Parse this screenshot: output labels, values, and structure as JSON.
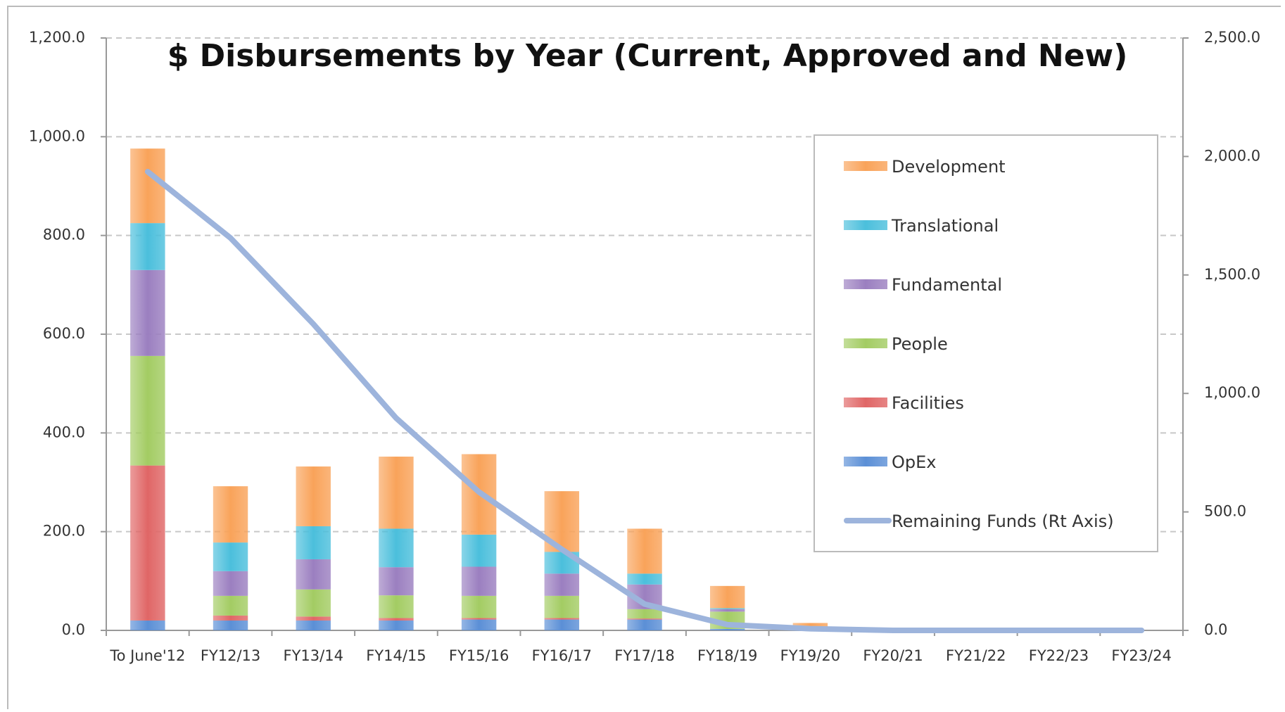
{
  "chart_data": {
    "type": "stacked-bar-line",
    "title": "$ Disbursements by Year (Current, Approved and New)",
    "categories": [
      "To June'12",
      "FY12/13",
      "FY13/14",
      "FY14/15",
      "FY15/16",
      "FY16/17",
      "FY17/18",
      "FY18/19",
      "FY19/20",
      "FY20/21",
      "FY21/22",
      "FY22/23",
      "FY23/24"
    ],
    "series": [
      {
        "name": "OpEx",
        "color": "#5b8fd6",
        "values": [
          20,
          20,
          20,
          20,
          22,
          22,
          22,
          3,
          0,
          0,
          0,
          0,
          0
        ]
      },
      {
        "name": "Facilities",
        "color": "#e06666",
        "values": [
          314,
          10,
          8,
          5,
          3,
          3,
          2,
          0,
          0,
          0,
          0,
          0,
          0
        ]
      },
      {
        "name": "People",
        "color": "#a3cc63",
        "values": [
          222,
          40,
          55,
          46,
          45,
          45,
          19,
          35,
          0,
          0,
          0,
          0,
          0
        ]
      },
      {
        "name": "Fundamental",
        "color": "#9b7fc0",
        "values": [
          174,
          50,
          61,
          57,
          59,
          45,
          50,
          5,
          0,
          0,
          0,
          0,
          0
        ]
      },
      {
        "name": "Translational",
        "color": "#4bbfdc",
        "values": [
          95,
          58,
          67,
          78,
          65,
          44,
          22,
          2,
          0,
          0,
          0,
          0,
          0
        ]
      },
      {
        "name": "Development",
        "color": "#f9a35a",
        "values": [
          151,
          114,
          121,
          146,
          163,
          123,
          91,
          45,
          15,
          0,
          0,
          0,
          0
        ]
      },
      {
        "name": "Remaining Funds (Rt Axis)",
        "color": "#9db4dc",
        "axis": "y2",
        "line": true,
        "values": [
          1936,
          1656,
          1293,
          896,
          584,
          342,
          111,
          24,
          7,
          0,
          0,
          0,
          0
        ]
      }
    ],
    "ylim": [
      0,
      1200
    ],
    "yticks": [
      {
        "value": 0,
        "label": "0.0"
      },
      {
        "value": 200,
        "label": "200.0"
      },
      {
        "value": 400,
        "label": "400.0"
      },
      {
        "value": 600,
        "label": "600.0"
      },
      {
        "value": 800,
        "label": "800.0"
      },
      {
        "value": 1000,
        "label": "1,000.0"
      },
      {
        "value": 1200,
        "label": "1,200.0"
      }
    ],
    "y2lim": [
      0,
      2500
    ],
    "y2ticks": [
      {
        "value": 0,
        "label": "0.0"
      },
      {
        "value": 500,
        "label": "500.0"
      },
      {
        "value": 1000,
        "label": "1,000.0"
      },
      {
        "value": 1500,
        "label": "1,500.0"
      },
      {
        "value": 2000,
        "label": "2,000.0"
      },
      {
        "value": 2500,
        "label": "2,500.0"
      }
    ],
    "grid": true,
    "legend": "right"
  }
}
